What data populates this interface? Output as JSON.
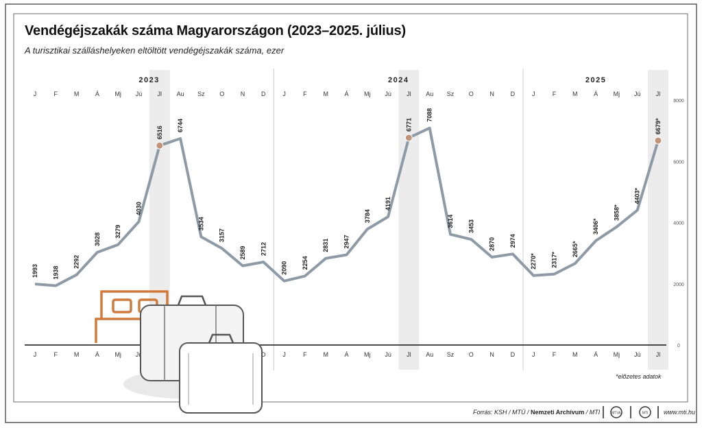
{
  "header": {
    "title": "Vendégéjszakák száma Magyarországon (2023–2025. július)",
    "subtitle": "A turisztikai szálláshelyeken eltöltött vendégéjszakák száma, ezer"
  },
  "footer": {
    "source_prefix": "Forrás: KSH / MTÜ / ",
    "source_bold": "Nemzeti Archívum",
    "source_suffix": " / MTI",
    "logo_1": "MTVA",
    "logo_2": "MTI",
    "url": "www.mti.hu",
    "note": "*előzetes adatok"
  },
  "colors": {
    "line": "#8e9aa6",
    "highlight_marker": "#c0937a",
    "highlight_band": "#ececec",
    "bed_icon": "#d07a3c"
  },
  "icons": [
    "bed-icon",
    "suitcase-icon",
    "mtva-logo-icon",
    "mti-logo-icon"
  ],
  "chart_data": {
    "type": "line",
    "title": "Vendégéjszakák száma Magyarországon (2023–2025. július)",
    "ylabel": "",
    "ylim": [
      0,
      8000
    ],
    "y_ticks": [
      "0",
      "2000",
      "4000",
      "6000",
      "8000"
    ],
    "grid": false,
    "years": [
      {
        "label": "2023",
        "month_count": 12
      },
      {
        "label": "2024",
        "month_count": 12
      },
      {
        "label": "2025",
        "month_count": 7
      }
    ],
    "categories": [
      "J",
      "F",
      "M",
      "Á",
      "Mj",
      "Jú",
      "Jl",
      "Au",
      "Sz",
      "O",
      "N",
      "D",
      "J",
      "F",
      "M",
      "Á",
      "Mj",
      "Jú",
      "Jl",
      "Au",
      "Sz",
      "O",
      "N",
      "D",
      "J",
      "F",
      "M",
      "Á",
      "Mj",
      "Jú",
      "Jl"
    ],
    "values": [
      1993,
      1938,
      2292,
      3028,
      3279,
      4030,
      6516,
      6744,
      3534,
      3157,
      2589,
      2712,
      2090,
      2254,
      2831,
      2947,
      3784,
      4191,
      6771,
      7088,
      3614,
      3453,
      2870,
      2974,
      2270,
      2317,
      2665,
      3406,
      3858,
      4403,
      6679
    ],
    "value_labels": [
      "1993",
      "1938",
      "2292",
      "3028",
      "3279",
      "4030",
      "6516",
      "6744",
      "3534",
      "3157",
      "2589",
      "2712",
      "2090",
      "2254",
      "2831",
      "2947",
      "3784",
      "4191",
      "6771",
      "7088",
      "3614",
      "3453",
      "2870",
      "2974",
      "2270*",
      "2317*",
      "2665*",
      "3406*",
      "3858*",
      "4403*",
      "6679*"
    ],
    "highlighted_index": [
      6,
      18,
      30
    ]
  }
}
